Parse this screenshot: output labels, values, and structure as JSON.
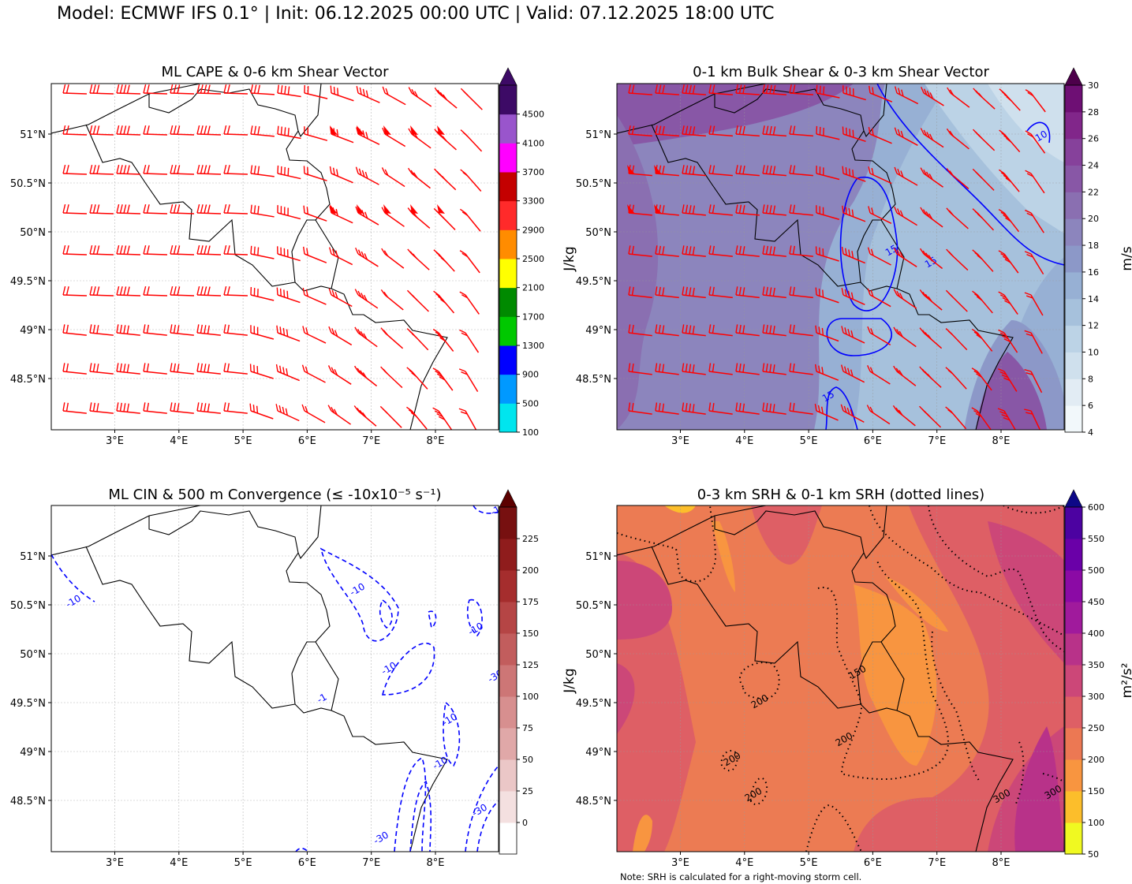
{
  "title": "Model: ECMWF IFS 0.1° | Init: 06.12.2025 00:00 UTC | Valid: 07.12.2025 18:00 UTC",
  "axes": {
    "lon_labels": [
      "3°E",
      "4°E",
      "5°E",
      "6°E",
      "7°E",
      "8°E"
    ],
    "lat_labels": [
      "51°N",
      "50.5°N",
      "50°N",
      "49.5°N",
      "49°N",
      "48.5°N"
    ]
  },
  "panels": [
    {
      "title": "ML CAPE & 0-6 km Shear Vector",
      "colorbar": {
        "unit": "J/kg",
        "ticks": [
          "100",
          "500",
          "900",
          "1300",
          "1700",
          "2100",
          "2500",
          "2900",
          "3300",
          "3700",
          "4100",
          "4500"
        ],
        "colors": [
          "#00e5ee",
          "#0099ff",
          "#0000ff",
          "#00c800",
          "#008a00",
          "#ffff00",
          "#ff8c00",
          "#ff2a2a",
          "#c40000",
          "#ff00ff",
          "#9955cc",
          "#3d0a66"
        ],
        "extend_color": "#3d0a66"
      },
      "barb_color": "#ff0000"
    },
    {
      "title": "0-1 km Bulk Shear & 0-3 km Shear Vector",
      "colorbar": {
        "unit": "m/s",
        "ticks": [
          "4",
          "6",
          "8",
          "10",
          "12",
          "14",
          "16",
          "18",
          "20",
          "22",
          "24",
          "26",
          "28",
          "30"
        ],
        "colors": [
          "#f2f8fb",
          "#e2ecf4",
          "#cfe0ed",
          "#bcd3e6",
          "#a6c1dc",
          "#97b0d4",
          "#8c98c8",
          "#8c85bd",
          "#8a6fb1",
          "#8857a6",
          "#86419b",
          "#81268a",
          "#6e0f74"
        ],
        "extend_color": "#4d004b"
      },
      "contour_labels": [
        "10",
        "15",
        "15",
        "15"
      ],
      "barb_color": "#ff0000"
    },
    {
      "title": "ML CIN & 500 m Convergence (≤ -10x10⁻⁵ s⁻¹)",
      "colorbar": {
        "unit": "J/kg",
        "ticks": [
          "0",
          "25",
          "50",
          "75",
          "100",
          "125",
          "150",
          "175",
          "200",
          "225"
        ],
        "colors": [
          "#ffffff",
          "#f4e0e0",
          "#ebc7c7",
          "#e0a8a8",
          "#d78f8f",
          "#cd7676",
          "#c25d5d",
          "#b54545",
          "#a52d2d",
          "#8f1c1c",
          "#771010"
        ],
        "extend_color": "#5c0000"
      },
      "contour_labels": [
        "-10",
        "-10",
        "-10",
        "-10",
        "-10",
        "-30",
        "-10",
        "-30",
        "-30",
        "-1",
        "-1"
      ]
    },
    {
      "title": "0-3 km SRH & 0-1 km SRH (dotted lines)",
      "colorbar": {
        "unit": "m²/s²",
        "ticks": [
          "50",
          "100",
          "150",
          "200",
          "250",
          "300",
          "350",
          "400",
          "450",
          "500",
          "550",
          "600"
        ],
        "colors": [
          "#f0f921",
          "#fcbe2b",
          "#f89540",
          "#ec7853",
          "#de5f65",
          "#cc4778",
          "#b83289",
          "#a01a9c",
          "#8b0aa5",
          "#6a00a8",
          "#4c02a1"
        ],
        "extend_color": "#0d0887"
      },
      "contour_labels": [
        "200",
        "150",
        "200",
        "200",
        "200",
        "300",
        "300"
      ],
      "note": "Note: SRH is calculated for a right-moving storm cell."
    }
  ]
}
